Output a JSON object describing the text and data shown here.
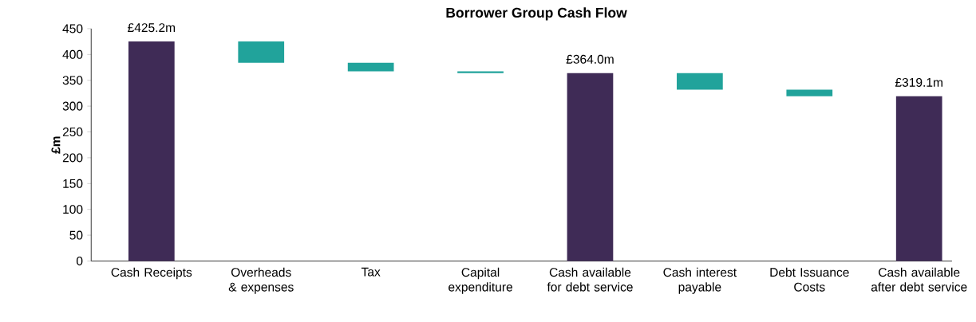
{
  "chart_data": {
    "type": "bar",
    "title": "Borrower Group Cash Flow",
    "ylabel": "£m",
    "categories": [
      "Cash Receipts",
      "Overheads & expenses",
      "Tax",
      "Capital expenditure",
      "Cash available for debt service",
      "Cash interest payable",
      "Debt Issuance Costs",
      "Cash available after debt service"
    ],
    "values": [
      425.2,
      -41.2,
      -16.5,
      -3.5,
      364.0,
      -32,
      -12.9,
      319.1
    ],
    "base": [
      0,
      425.2,
      384,
      367.5,
      0,
      364,
      332,
      0
    ],
    "colors": [
      "#3f2b56",
      "#21a39b",
      "#21a39b",
      "#21a39b",
      "#3f2b56",
      "#21a39b",
      "#21a39b",
      "#3f2b56"
    ],
    "value_labels": [
      "£425.2m",
      null,
      null,
      null,
      "£364.0m",
      null,
      null,
      "£319.1m"
    ],
    "ylim": [
      0,
      450
    ],
    "yticks": [
      0,
      50,
      100,
      150,
      200,
      250,
      300,
      350,
      400,
      450
    ],
    "grid": false
  }
}
